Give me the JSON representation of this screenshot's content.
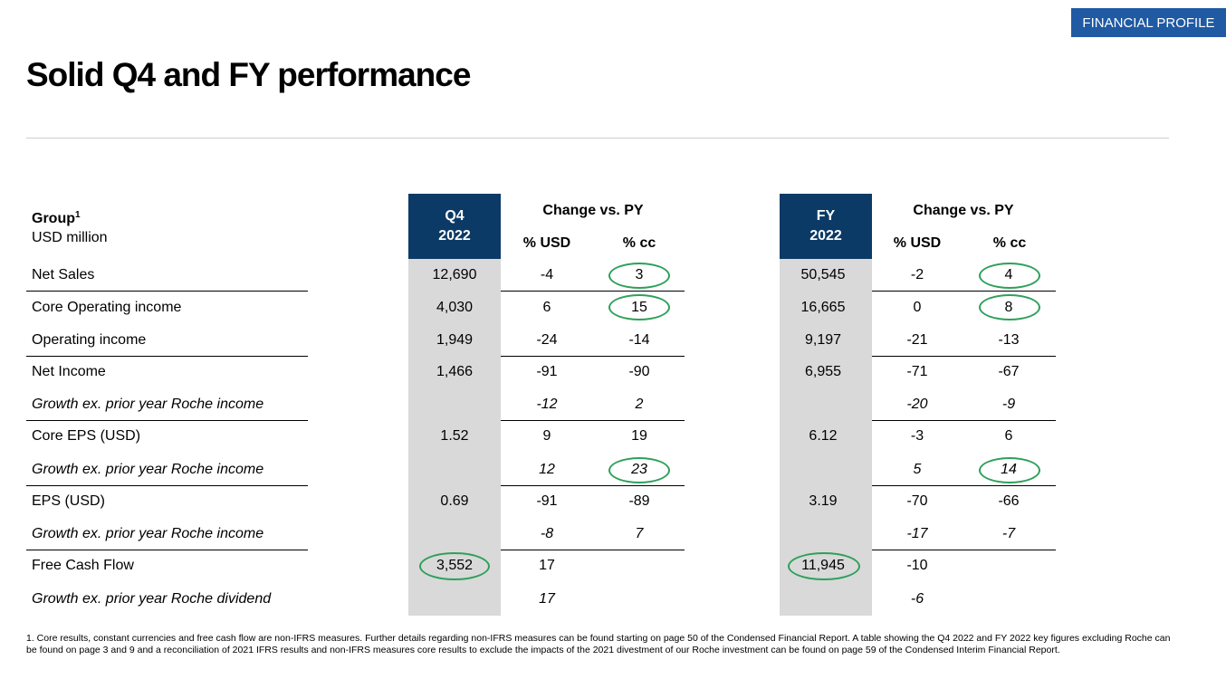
{
  "badge": "FINANCIAL PROFILE",
  "title": "Solid Q4 and FY performance",
  "header": {
    "group_label": "Group",
    "group_sup": "1",
    "unit": "USD million",
    "q4_line1": "Q4",
    "q4_line2": "2022",
    "fy_line1": "FY",
    "fy_line2": "2022",
    "change_q4": "Change vs. PY",
    "change_fy": "Change vs. PY",
    "pct_usd_q4": "% USD",
    "pct_cc_q4": "% cc",
    "pct_usd_fy": "% USD",
    "pct_cc_fy": "% cc"
  },
  "rows": [
    {
      "label": "Net Sales",
      "q4": "12,690",
      "q4_usd": "-4",
      "q4_cc": "3",
      "fy": "50,545",
      "fy_usd": "-2",
      "fy_cc": "4"
    },
    {
      "label": "Core Operating income",
      "q4": "4,030",
      "q4_usd": "6",
      "q4_cc": "15",
      "fy": "16,665",
      "fy_usd": "0",
      "fy_cc": "8"
    },
    {
      "label": "Operating income",
      "q4": "1,949",
      "q4_usd": "-24",
      "q4_cc": "-14",
      "fy": "9,197",
      "fy_usd": "-21",
      "fy_cc": "-13"
    },
    {
      "label": "Net Income",
      "q4": "1,466",
      "q4_usd": "-91",
      "q4_cc": "-90",
      "fy": "6,955",
      "fy_usd": "-71",
      "fy_cc": "-67"
    },
    {
      "label": "Growth ex. prior year Roche income",
      "q4": "",
      "q4_usd": "-12",
      "q4_cc": "2",
      "fy": "",
      "fy_usd": "-20",
      "fy_cc": "-9"
    },
    {
      "label": "Core EPS (USD)",
      "q4": "1.52",
      "q4_usd": "9",
      "q4_cc": "19",
      "fy": "6.12",
      "fy_usd": "-3",
      "fy_cc": "6"
    },
    {
      "label": "Growth ex. prior year Roche income",
      "q4": "",
      "q4_usd": "12",
      "q4_cc": "23",
      "fy": "",
      "fy_usd": "5",
      "fy_cc": "14"
    },
    {
      "label": "EPS (USD)",
      "q4": "0.69",
      "q4_usd": "-91",
      "q4_cc": "-89",
      "fy": "3.19",
      "fy_usd": "-70",
      "fy_cc": "-66"
    },
    {
      "label": "Growth ex. prior year Roche income",
      "q4": "",
      "q4_usd": "-8",
      "q4_cc": "7",
      "fy": "",
      "fy_usd": "-17",
      "fy_cc": "-7"
    },
    {
      "label": "Free Cash Flow",
      "q4": "3,552",
      "q4_usd": "17",
      "q4_cc": "",
      "fy": "11,945",
      "fy_usd": "-10",
      "fy_cc": ""
    },
    {
      "label": "Growth ex. prior year Roche dividend",
      "q4": "",
      "q4_usd": "17",
      "q4_cc": "",
      "fy": "",
      "fy_usd": "-6",
      "fy_cc": ""
    }
  ],
  "footnote": "1. Core results, constant currencies and free cash flow are non-IFRS measures. Further details regarding non-IFRS measures can be found starting on page 50 of the Condensed Financial Report. A table showing the Q4 2022 and FY 2022 key figures excluding Roche can be found on page 3 and 9 and a reconciliation of 2021 IFRS results and non-IFRS measures core results to exclude the impacts of the 2021 divestment of our Roche investment can be found on page 59 of the Condensed Interim Financial Report.",
  "colors": {
    "badge_bg": "#1f5aa3",
    "header_box": "#0b3a66",
    "shade": "#d9d9d9",
    "highlight": "#2ea05a"
  }
}
